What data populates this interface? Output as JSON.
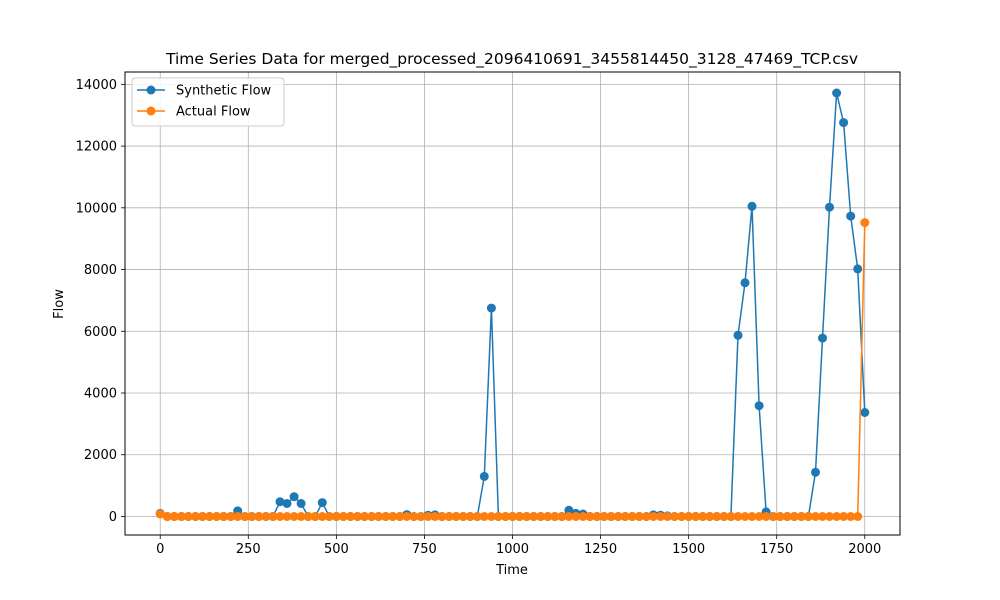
{
  "chart_data": {
    "type": "line",
    "title": "Time Series Data for merged_processed_2096410691_3455814450_3128_47469_TCP.csv",
    "xlabel": "Time",
    "ylabel": "Flow",
    "xlim": [
      -100,
      2100
    ],
    "ylim": [
      -600,
      14400
    ],
    "xticks": [
      0,
      250,
      500,
      750,
      1000,
      1250,
      1500,
      1750,
      2000
    ],
    "yticks": [
      0,
      2000,
      4000,
      6000,
      8000,
      10000,
      12000,
      14000
    ],
    "grid": true,
    "legend": "upper-left",
    "series": [
      {
        "name": "Synthetic Flow",
        "color": "#1f77b4",
        "x": [
          0,
          20,
          40,
          60,
          80,
          100,
          120,
          140,
          160,
          180,
          200,
          220,
          240,
          260,
          280,
          300,
          320,
          340,
          360,
          380,
          400,
          420,
          440,
          460,
          480,
          500,
          520,
          540,
          560,
          580,
          600,
          620,
          640,
          660,
          680,
          700,
          720,
          740,
          760,
          780,
          800,
          820,
          840,
          860,
          880,
          900,
          920,
          940,
          960,
          980,
          1000,
          1020,
          1040,
          1060,
          1080,
          1100,
          1120,
          1140,
          1160,
          1180,
          1200,
          1220,
          1240,
          1260,
          1280,
          1300,
          1320,
          1340,
          1360,
          1380,
          1400,
          1420,
          1440,
          1460,
          1480,
          1500,
          1520,
          1540,
          1560,
          1580,
          1600,
          1620,
          1640,
          1660,
          1680,
          1700,
          1720,
          1740,
          1760,
          1780,
          1800,
          1820,
          1840,
          1860,
          1880,
          1900,
          1920,
          1940,
          1960,
          1980,
          2000
        ],
        "y": [
          100,
          0,
          0,
          0,
          0,
          0,
          0,
          0,
          0,
          0,
          0,
          180,
          0,
          0,
          0,
          0,
          0,
          480,
          420,
          640,
          420,
          0,
          0,
          450,
          0,
          0,
          0,
          0,
          0,
          0,
          0,
          0,
          0,
          0,
          0,
          60,
          0,
          0,
          40,
          50,
          0,
          0,
          0,
          0,
          0,
          0,
          1300,
          6750,
          0,
          0,
          0,
          0,
          0,
          0,
          0,
          0,
          0,
          0,
          200,
          100,
          80,
          0,
          0,
          0,
          0,
          0,
          0,
          0,
          0,
          0,
          50,
          40,
          20,
          0,
          0,
          0,
          0,
          0,
          0,
          0,
          0,
          0,
          5870,
          7570,
          10050,
          3590,
          150,
          0,
          0,
          0,
          0,
          0,
          0,
          1430,
          5780,
          10020,
          13720,
          12760,
          9730,
          8020,
          3370
        ]
      },
      {
        "name": "Actual Flow",
        "color": "#ff7f0e",
        "x": [
          0,
          20,
          40,
          60,
          80,
          100,
          120,
          140,
          160,
          180,
          200,
          220,
          240,
          260,
          280,
          300,
          320,
          340,
          360,
          380,
          400,
          420,
          440,
          460,
          480,
          500,
          520,
          540,
          560,
          580,
          600,
          620,
          640,
          660,
          680,
          700,
          720,
          740,
          760,
          780,
          800,
          820,
          840,
          860,
          880,
          900,
          920,
          940,
          960,
          980,
          1000,
          1020,
          1040,
          1060,
          1080,
          1100,
          1120,
          1140,
          1160,
          1180,
          1200,
          1220,
          1240,
          1260,
          1280,
          1300,
          1320,
          1340,
          1360,
          1380,
          1400,
          1420,
          1440,
          1460,
          1480,
          1500,
          1520,
          1540,
          1560,
          1580,
          1600,
          1620,
          1640,
          1660,
          1680,
          1700,
          1720,
          1740,
          1760,
          1780,
          1800,
          1820,
          1840,
          1860,
          1880,
          1900,
          1920,
          1940,
          1960,
          1980,
          2000
        ],
        "y": [
          80,
          0,
          0,
          0,
          0,
          0,
          0,
          0,
          0,
          0,
          0,
          0,
          0,
          0,
          0,
          0,
          0,
          0,
          0,
          0,
          0,
          0,
          0,
          0,
          0,
          0,
          0,
          0,
          0,
          0,
          0,
          0,
          0,
          0,
          0,
          0,
          0,
          0,
          0,
          0,
          0,
          0,
          0,
          0,
          0,
          0,
          0,
          0,
          0,
          0,
          0,
          0,
          0,
          0,
          0,
          0,
          0,
          0,
          0,
          0,
          0,
          0,
          0,
          0,
          0,
          0,
          0,
          0,
          0,
          0,
          0,
          0,
          0,
          0,
          0,
          0,
          0,
          0,
          0,
          0,
          0,
          0,
          0,
          0,
          0,
          0,
          0,
          0,
          0,
          0,
          0,
          0,
          0,
          0,
          0,
          0,
          0,
          0,
          0,
          0,
          9520
        ]
      }
    ]
  }
}
